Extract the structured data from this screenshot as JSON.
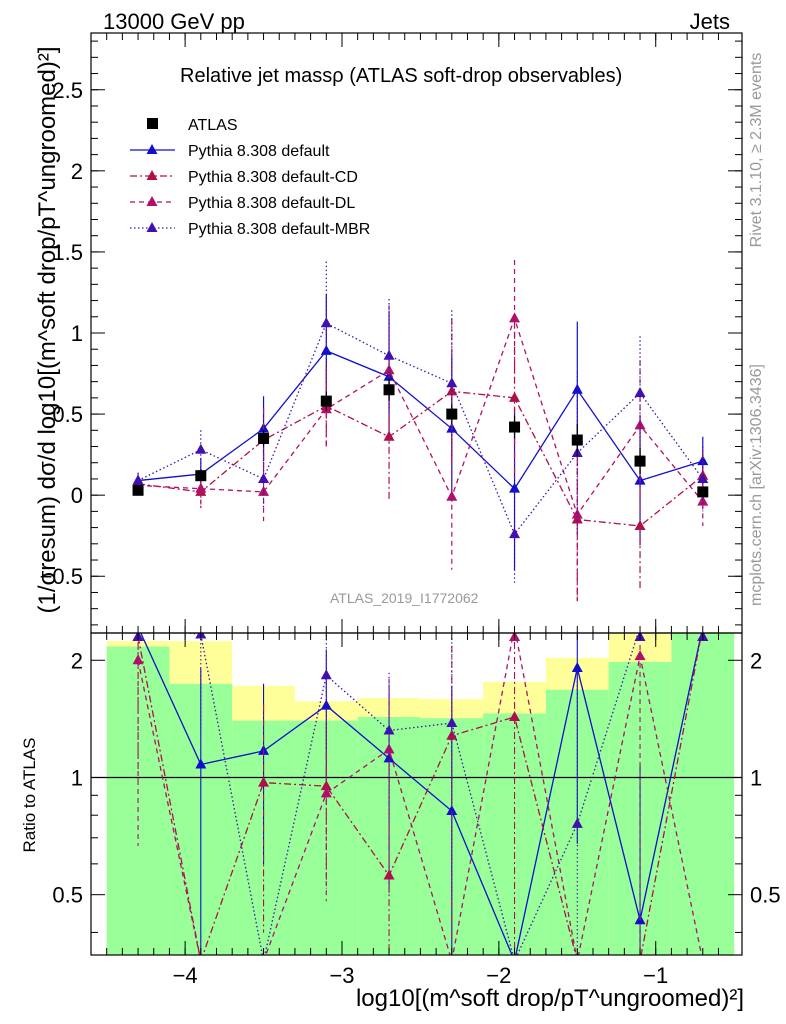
{
  "header": {
    "energy_label": "13000 GeV pp",
    "category_label": "Jets"
  },
  "side": {
    "rivet": "Rivet 3.1.10, ≥ 2.3M events",
    "source": "mcplots.cern.ch [arXiv:1306.3436]"
  },
  "analysis_id": "ATLAS_2019_I1772062",
  "axis_labels": {
    "y_main": "(1/σresum) dσ/d log10[(m^soft drop/pT^ungroomed)²]",
    "y_ratio": "Ratio to ATLAS",
    "x": "log10[(m^soft drop/pT^ungroomed)²]"
  },
  "colors": {
    "data": "#000000",
    "default": "#1010cc",
    "cd": "#b0104a",
    "dl": "#b0106a",
    "mbr": "#4010b0",
    "band_inner": "#99ff99",
    "band_outer": "#ffff99"
  },
  "chart_data": {
    "type": "line",
    "title": "Relative jet massρ (ATLAS soft-drop observables)",
    "xlim": [
      -4.6,
      -0.45
    ],
    "ylim": [
      -0.85,
      2.85
    ],
    "ratio_ylim": [
      0.35,
      2.35
    ],
    "x_ticks": [
      -4,
      -3,
      -2,
      -1
    ],
    "y_ticks": [
      -0.5,
      0,
      0.5,
      1,
      1.5,
      2,
      2.5
    ],
    "ratio_ticks": [
      0.5,
      1,
      2
    ],
    "bins": [
      [
        -4.5,
        -4.1
      ],
      [
        -4.1,
        -3.7
      ],
      [
        -3.7,
        -3.3
      ],
      [
        -3.3,
        -2.9
      ],
      [
        -2.9,
        -2.5
      ],
      [
        -2.5,
        -2.1
      ],
      [
        -2.1,
        -1.7
      ],
      [
        -1.7,
        -1.3
      ],
      [
        -1.3,
        -0.9
      ],
      [
        -0.9,
        -0.5
      ]
    ],
    "x": [
      -4.3,
      -3.9,
      -3.5,
      -3.1,
      -2.7,
      -2.3,
      -1.9,
      -1.5,
      -1.1,
      -0.7
    ],
    "legend": [
      "ATLAS",
      "Pythia 8.308 default",
      "Pythia 8.308 default-CD",
      "Pythia 8.308 default-DL",
      "Pythia 8.308 default-MBR"
    ],
    "data": {
      "name": "ATLAS",
      "values": [
        0.03,
        0.12,
        0.35,
        0.58,
        0.65,
        0.5,
        0.42,
        0.34,
        0.21,
        0.02
      ],
      "errors": [
        0.01,
        0.02,
        0.05,
        0.06,
        0.07,
        0.06,
        0.07,
        0.1,
        0.08,
        0.01
      ]
    },
    "series": [
      {
        "name": "Pythia 8.308 default",
        "key": "default",
        "dash": "",
        "values": [
          0.09,
          0.13,
          0.41,
          0.89,
          0.73,
          0.41,
          0.04,
          0.65,
          0.09,
          0.21
        ],
        "errors": [
          0.04,
          0.1,
          0.2,
          0.35,
          0.4,
          0.45,
          0.5,
          0.42,
          0.4,
          0.15
        ]
      },
      {
        "name": "Pythia 8.308 default-CD",
        "key": "cd",
        "dash": "7,3,2,3",
        "values": [
          0.07,
          0.02,
          0.34,
          0.55,
          0.36,
          0.64,
          0.6,
          -0.15,
          -0.19,
          0.12
        ],
        "errors": [
          0.04,
          0.1,
          0.2,
          0.25,
          0.4,
          0.45,
          0.5,
          0.5,
          0.4,
          0.15
        ]
      },
      {
        "name": "Pythia 8.308 default-DL",
        "key": "dl",
        "dash": "5,4",
        "values": [
          0.06,
          0.04,
          0.02,
          0.53,
          0.77,
          -0.01,
          1.09,
          -0.12,
          0.43,
          -0.04
        ],
        "errors": [
          0.04,
          0.1,
          0.18,
          0.25,
          0.4,
          0.45,
          0.36,
          0.55,
          0.4,
          0.15
        ]
      },
      {
        "name": "Pythia 8.308 default-MBR",
        "key": "mbr",
        "dash": "1.5,2.5",
        "values": [
          0.09,
          0.28,
          0.1,
          1.06,
          0.86,
          0.69,
          -0.24,
          0.26,
          0.63,
          0.1
        ],
        "errors": [
          0.05,
          0.12,
          0.18,
          0.38,
          0.35,
          0.45,
          0.3,
          0.5,
          0.35,
          0.2
        ]
      }
    ],
    "ratio": {
      "band_inner": [
        [
          0.35,
          2.17
        ],
        [
          0.35,
          1.74
        ],
        [
          0.35,
          1.4
        ],
        [
          0.35,
          1.4
        ],
        [
          0.35,
          1.43
        ],
        [
          0.35,
          1.42
        ],
        [
          0.35,
          1.46
        ],
        [
          0.35,
          1.68
        ],
        [
          0.35,
          1.98
        ],
        [
          0.35,
          2.35
        ]
      ],
      "band_outer": [
        [
          0.35,
          2.24
        ],
        [
          0.35,
          2.24
        ],
        [
          0.35,
          1.72
        ],
        [
          0.35,
          1.57
        ],
        [
          0.35,
          1.6
        ],
        [
          0.35,
          1.59
        ],
        [
          0.35,
          1.76
        ],
        [
          0.35,
          2.03
        ],
        [
          0.35,
          2.35
        ],
        [
          0.35,
          2.35
        ]
      ],
      "series": {
        "default": [
          3.0,
          1.08,
          1.17,
          1.53,
          1.12,
          0.82,
          0.1,
          1.91,
          0.43,
          10
        ],
        "cd": [
          2.3,
          0.17,
          0.97,
          0.95,
          0.56,
          1.28,
          1.43,
          -0.4,
          -0.9,
          6
        ],
        "dl": [
          2.0,
          0.33,
          0.06,
          0.91,
          1.18,
          -0.02,
          2.6,
          -0.35,
          2.05,
          -2
        ],
        "mbr": [
          3.0,
          2.33,
          0.29,
          1.83,
          1.32,
          1.38,
          -0.57,
          0.76,
          3.0,
          5
        ]
      }
    }
  }
}
